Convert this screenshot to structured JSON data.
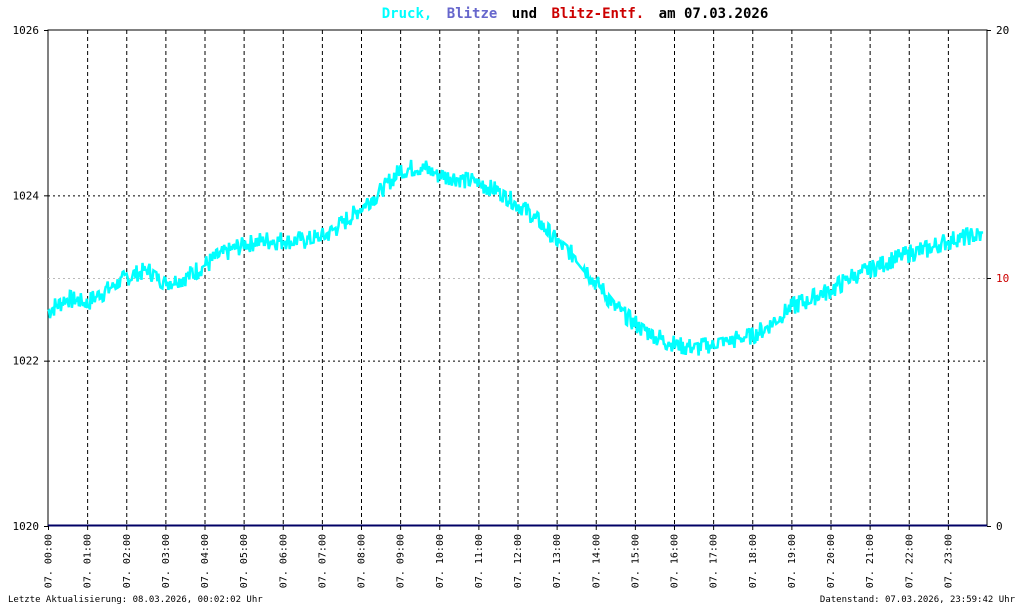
{
  "title": {
    "part1": "Druck,",
    "part2": "Blitze",
    "part3": "und",
    "part4": "Blitz-Entf.",
    "part5": "am 07.03.2026",
    "colors": {
      "druck": "#00ffff",
      "blitze": "#6666cc",
      "neutral": "#000000",
      "entf": "#cc0000"
    }
  },
  "footer": {
    "left": "Letzte Aktualisierung: 08.03.2026, 00:02:02 Uhr",
    "right": "Datenstand: 07.03.2026, 23:59:42 Uhr"
  },
  "chart_data": {
    "type": "line",
    "x_ticks": [
      "07. 00:00",
      "07. 01:00",
      "07. 02:00",
      "07. 03:00",
      "07. 04:00",
      "07. 05:00",
      "07. 06:00",
      "07. 07:00",
      "07. 08:00",
      "07. 09:00",
      "07. 10:00",
      "07. 11:00",
      "07. 12:00",
      "07. 13:00",
      "07. 14:00",
      "07. 15:00",
      "07. 16:00",
      "07. 17:00",
      "07. 18:00",
      "07. 19:00",
      "07. 20:00",
      "07. 21:00",
      "07. 22:00",
      "07. 23:00"
    ],
    "y_left": {
      "ticks": [
        "1020",
        "1022",
        "1024",
        "1026"
      ],
      "range": [
        1020,
        1026
      ]
    },
    "y_right": {
      "ticks": [
        "0",
        "10",
        "20"
      ],
      "range": [
        0,
        20
      ],
      "colors": [
        "#000000",
        "#cc0000",
        "#000000"
      ]
    },
    "x_range_hours": [
      0,
      24
    ],
    "grid": true,
    "series": [
      {
        "name": "Druck",
        "color": "#00ffff",
        "x": [
          0,
          0.5,
          1,
          1.5,
          2,
          2.5,
          3,
          3.5,
          4,
          4.5,
          5,
          5.5,
          6,
          6.5,
          7,
          7.5,
          8,
          8.5,
          9,
          9.5,
          10,
          10.5,
          11,
          11.5,
          12,
          12.5,
          13,
          13.5,
          14,
          14.5,
          15,
          15.5,
          16,
          16.5,
          17,
          17.5,
          18,
          18.5,
          19,
          19.5,
          20,
          20.5,
          21,
          21.5,
          22,
          22.5,
          23,
          23.5,
          23.9
        ],
        "y": [
          1022.6,
          1022.75,
          1022.7,
          1022.85,
          1023.0,
          1023.1,
          1022.95,
          1023.0,
          1023.15,
          1023.3,
          1023.4,
          1023.45,
          1023.45,
          1023.45,
          1023.5,
          1023.65,
          1023.85,
          1024.05,
          1024.3,
          1024.35,
          1024.25,
          1024.2,
          1024.15,
          1024.05,
          1023.9,
          1023.7,
          1023.45,
          1023.25,
          1022.95,
          1022.65,
          1022.45,
          1022.3,
          1022.2,
          1022.15,
          1022.2,
          1022.25,
          1022.3,
          1022.45,
          1022.65,
          1022.75,
          1022.85,
          1023.0,
          1023.1,
          1023.2,
          1023.3,
          1023.35,
          1023.45,
          1023.5,
          1023.5
        ]
      },
      {
        "name": "Blitze",
        "color": "#000066",
        "x": [
          0,
          24
        ],
        "y": [
          0,
          0
        ]
      }
    ]
  }
}
